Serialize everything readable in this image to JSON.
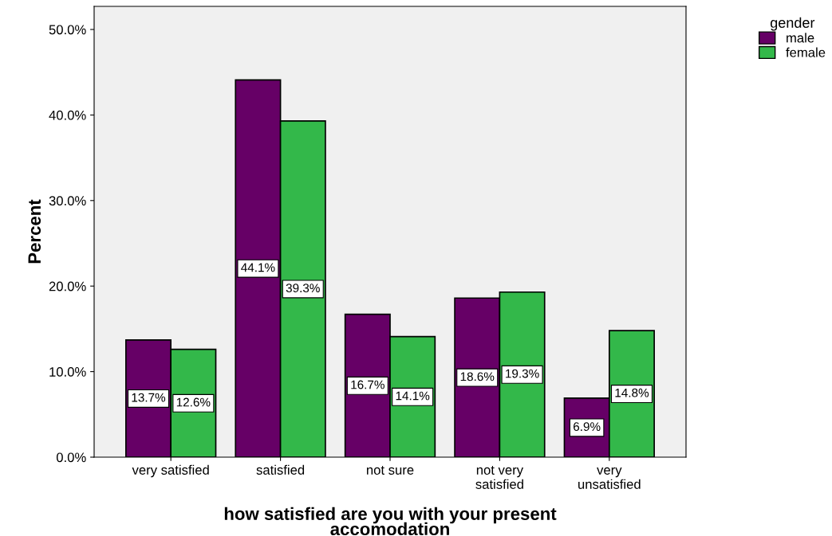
{
  "chart_data": {
    "type": "bar",
    "categories": [
      "very satisfied",
      "satisfied",
      "not sure",
      "not very\nsatisfied",
      "very\nunsatisfied"
    ],
    "series": [
      {
        "name": "male",
        "color": "#660066",
        "values": [
          13.7,
          44.1,
          16.7,
          18.6,
          6.9
        ],
        "value_labels": [
          "13.7%",
          "44.1%",
          "16.7%",
          "18.6%",
          "6.9%"
        ]
      },
      {
        "name": "female",
        "color": "#33b84a",
        "values": [
          12.6,
          39.3,
          14.1,
          19.3,
          14.8
        ],
        "value_labels": [
          "12.6%",
          "39.3%",
          "14.1%",
          "19.3%",
          "14.8%"
        ]
      }
    ],
    "xlabel": "how satisfied are you with your present\naccomodation",
    "ylabel": "Percent",
    "legend_title": "gender",
    "legend": "top right",
    "ylim": [
      0,
      52.7
    ],
    "yticks": [
      {
        "value": 0,
        "label": "0.0%"
      },
      {
        "value": 10,
        "label": "10.0%"
      },
      {
        "value": 20,
        "label": "20.0%"
      },
      {
        "value": 30,
        "label": "30.0%"
      },
      {
        "value": 40,
        "label": "40.0%"
      },
      {
        "value": 50,
        "label": "50.0%"
      }
    ],
    "grid": false
  }
}
